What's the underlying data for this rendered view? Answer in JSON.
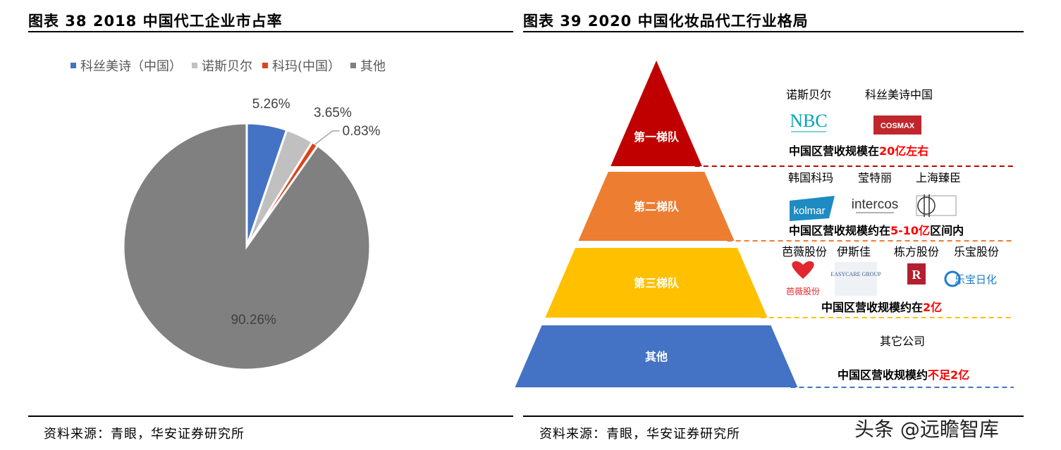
{
  "left": {
    "title": "图表 38 2018 中国代工企业市占率",
    "source": "资料来源：青眼，华安证券研究所"
  },
  "right": {
    "title": "图表 39 2020 中国化妆品代工行业格局",
    "source": "资料来源：青眼，华安证券研究所"
  },
  "watermark": "头条 @远瞻智库",
  "chart_data": [
    {
      "type": "pie",
      "title": "2018 中国代工企业市占率",
      "categories": [
        "科丝美诗（中国）",
        "诺斯贝尔",
        "科玛(中国）",
        "其他"
      ],
      "values": [
        5.26,
        3.65,
        0.83,
        90.26
      ],
      "labels": [
        "5.26%",
        "3.65%",
        "0.83%",
        "90.26%"
      ],
      "colors": [
        "#4472C4",
        "#C0C0C0",
        "#D9441A",
        "#808080"
      ],
      "legend_position": "top"
    },
    {
      "type": "pyramid",
      "title": "2020 中国化妆品代工行业格局",
      "tiers": [
        {
          "name": "第一梯队",
          "color": "#C00000",
          "companies": [
            "诺斯贝尔",
            "科丝美诗中国"
          ],
          "logos": [
            "NBC",
            "COSMAX"
          ],
          "revenue_prefix": "中国区营收规模在",
          "revenue_highlight": "20亿左右",
          "revenue_suffix": ""
        },
        {
          "name": "第二梯队",
          "color": "#ED7D31",
          "companies": [
            "韩国科玛",
            "莹特丽",
            "上海臻臣"
          ],
          "logos": [
            "kolmar",
            "intercos",
            ""
          ],
          "revenue_prefix": "中国区营收规模约在",
          "revenue_highlight": "5-10亿",
          "revenue_suffix": "区间内"
        },
        {
          "name": "第三梯队",
          "color": "#FFC000",
          "companies": [
            "芭薇股份",
            "伊斯佳",
            "栋方股份",
            "乐宝股份"
          ],
          "logos": [
            "芭薇股份",
            "EASYCARE GROUP",
            "R",
            "乐宝日化"
          ],
          "revenue_prefix": "中国区营收规模约在",
          "revenue_highlight": "2亿",
          "revenue_suffix": ""
        },
        {
          "name": "其他",
          "color": "#4472C4",
          "companies": [
            "其它公司"
          ],
          "logos": [],
          "revenue_prefix": "中国区营收规模约",
          "revenue_highlight": "不足2亿",
          "revenue_suffix": ""
        }
      ]
    }
  ]
}
